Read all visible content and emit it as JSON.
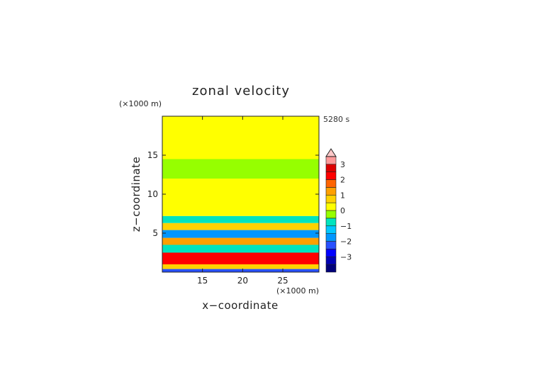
{
  "chart_data": {
    "type": "heatmap",
    "title": "zonal velocity",
    "xlabel": "x−coordinate",
    "ylabel": "z−coordinate",
    "x_unit": "(×1000 m)",
    "y_unit": "(×1000 m)",
    "time_label": "5280 s",
    "xlim": [
      10,
      29.5
    ],
    "ylim": [
      0,
      20
    ],
    "x_ticks": [
      "15",
      "20",
      "25"
    ],
    "y_ticks": [
      "5",
      "10",
      "15"
    ],
    "x_tick_values": [
      15,
      20,
      25
    ],
    "y_tick_values": [
      5,
      10,
      15
    ],
    "grid": false,
    "colorbar": {
      "levels": [
        -3.5,
        -3,
        -2.5,
        -2,
        -1.5,
        -1,
        -0.5,
        0,
        0.5,
        1,
        1.5,
        2,
        2.5,
        3,
        3.5
      ],
      "colors": [
        "#00007a",
        "#0000b4",
        "#0000ff",
        "#2850ff",
        "#0096ff",
        "#00c8ff",
        "#00e4be",
        "#96ff00",
        "#ffff00",
        "#ffd200",
        "#ffa000",
        "#ff6400",
        "#ff0000",
        "#dc0000",
        "#ff9a9a",
        "#ffc8c8"
      ],
      "tick_labels": [
        "3",
        "2",
        "1",
        "0",
        "−1",
        "−2",
        "−3"
      ],
      "tick_values": [
        3,
        2,
        1,
        0,
        -1,
        -2,
        -3
      ]
    },
    "field_bands": [
      {
        "z_range": [
          0,
          0.4
        ],
        "value": -2.5
      },
      {
        "z_range": [
          0.4,
          1.0
        ],
        "value": 0.7
      },
      {
        "z_range": [
          1.0,
          2.5
        ],
        "value": 2.4
      },
      {
        "z_range": [
          2.5,
          3.5
        ],
        "value": -0.8
      },
      {
        "z_range": [
          3.5,
          4.4
        ],
        "value": 1.3
      },
      {
        "z_range": [
          4.4,
          5.4
        ],
        "value": -2.0
      },
      {
        "z_range": [
          5.4,
          6.3
        ],
        "value": 0.9
      },
      {
        "z_range": [
          6.3,
          7.2
        ],
        "value": -0.7
      },
      {
        "z_range": [
          7.2,
          8.5
        ],
        "value": 0.3
      },
      {
        "z_range": [
          8.5,
          12.0
        ],
        "value": 0.25
      },
      {
        "z_range": [
          12.0,
          14.5
        ],
        "value": -0.2
      },
      {
        "z_range": [
          14.5,
          16.5
        ],
        "value": 0.3
      },
      {
        "z_range": [
          16.5,
          17.5
        ],
        "value": 0.0
      },
      {
        "z_range": [
          17.5,
          20.0
        ],
        "value": 0.3
      }
    ]
  }
}
